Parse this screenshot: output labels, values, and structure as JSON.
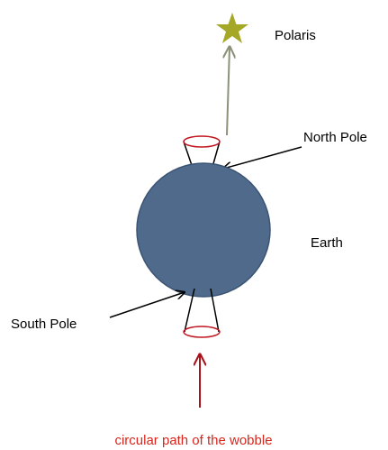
{
  "labels": {
    "polaris": "Polaris",
    "north_pole": "North Pole",
    "earth": "Earth",
    "south_pole": "South Pole",
    "caption": "circular path of the wobble"
  }
}
